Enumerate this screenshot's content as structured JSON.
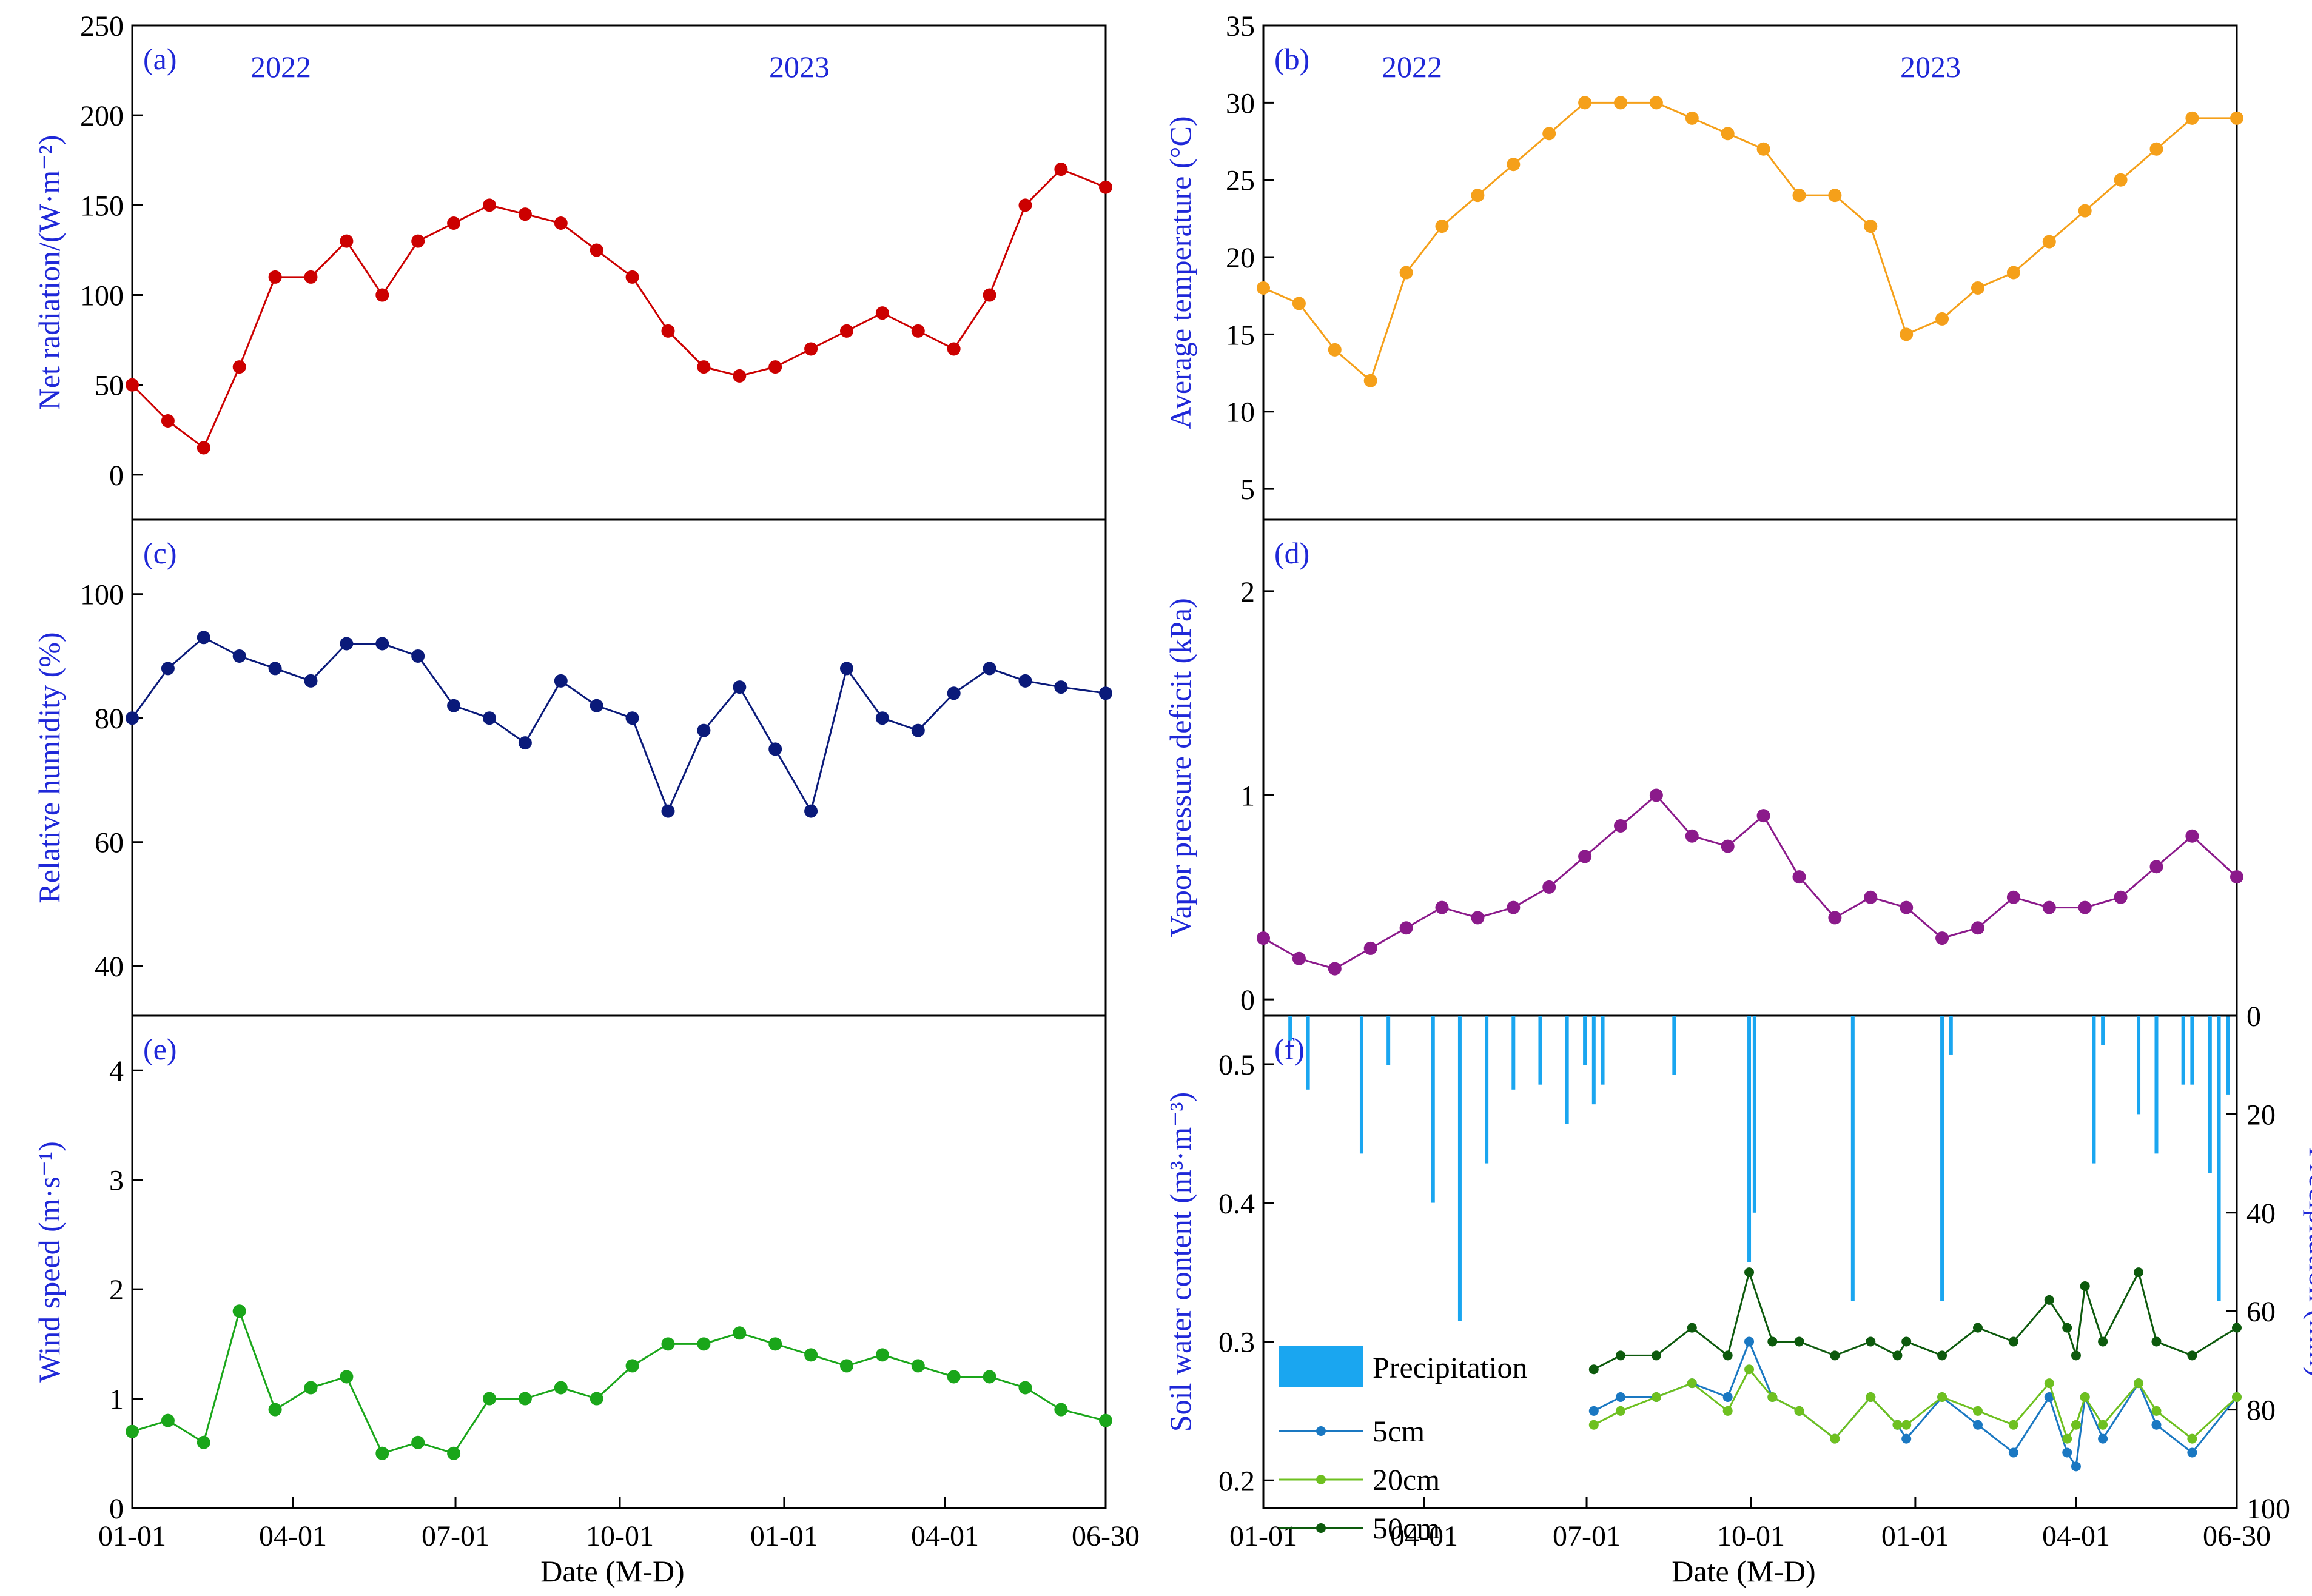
{
  "figure": {
    "shared_xlabel": "Date (M-D)",
    "date_ticks": [
      "01-01",
      "04-01",
      "07-01",
      "10-01",
      "01-01",
      "04-01",
      "06-30"
    ],
    "years": [
      "2022",
      "2023"
    ]
  },
  "chart_data": [
    {
      "id": "a",
      "panel_label": "(a)",
      "type": "line",
      "ylabel": "Net radiation/(W·m⁻²)",
      "ylim": [
        -25,
        250
      ],
      "yticks": [
        0,
        50,
        100,
        150,
        200,
        250
      ],
      "color": "#cc0000",
      "year_labels": [
        "2022",
        "2023"
      ],
      "x_days": [
        0,
        20,
        40,
        60,
        80,
        100,
        120,
        140,
        160,
        180,
        200,
        220,
        240,
        260,
        280,
        300,
        320,
        340,
        360,
        380,
        400,
        420,
        440,
        460,
        480,
        500,
        520,
        545
      ],
      "series": [
        {
          "name": "Net radiation",
          "values": [
            50,
            30,
            15,
            60,
            110,
            110,
            130,
            100,
            130,
            140,
            150,
            145,
            140,
            125,
            110,
            80,
            60,
            55,
            60,
            70,
            80,
            90,
            80,
            70,
            100,
            150,
            170,
            160
          ]
        }
      ]
    },
    {
      "id": "b",
      "panel_label": "(b)",
      "type": "line",
      "ylabel": "Average temperature (°C)",
      "ylim": [
        3,
        35
      ],
      "yticks": [
        5,
        10,
        15,
        20,
        25,
        30,
        35
      ],
      "color": "#f5a01a",
      "year_labels": [
        "2022",
        "2023"
      ],
      "x_days": [
        0,
        20,
        40,
        60,
        80,
        100,
        120,
        140,
        160,
        180,
        200,
        220,
        240,
        260,
        280,
        300,
        320,
        340,
        360,
        380,
        400,
        420,
        440,
        460,
        480,
        500,
        520,
        545
      ],
      "series": [
        {
          "name": "Average temperature",
          "values": [
            18,
            17,
            14,
            12,
            19,
            22,
            24,
            26,
            28,
            30,
            30,
            30,
            29,
            28,
            27,
            24,
            24,
            22,
            15,
            16,
            18,
            19,
            21,
            23,
            25,
            27,
            29,
            29
          ]
        }
      ]
    },
    {
      "id": "c",
      "panel_label": "(c)",
      "type": "line",
      "ylabel": "Relative humidity (%)",
      "ylim": [
        32,
        112
      ],
      "yticks": [
        40,
        60,
        80,
        100
      ],
      "color": "#0a1a7a",
      "x_days": [
        0,
        20,
        40,
        60,
        80,
        100,
        120,
        140,
        160,
        180,
        200,
        220,
        240,
        260,
        280,
        300,
        320,
        340,
        360,
        380,
        400,
        420,
        440,
        460,
        480,
        500,
        520,
        545
      ],
      "series": [
        {
          "name": "Relative humidity",
          "values": [
            80,
            88,
            93,
            90,
            88,
            86,
            92,
            92,
            90,
            82,
            80,
            76,
            86,
            82,
            80,
            65,
            78,
            85,
            75,
            65,
            88,
            80,
            78,
            84,
            88,
            86,
            85,
            84
          ]
        }
      ]
    },
    {
      "id": "d",
      "panel_label": "(d)",
      "type": "line",
      "ylabel": "Vapor pressure deficit (kPa)",
      "ylim": [
        -0.08,
        2.35
      ],
      "yticks": [
        0,
        1,
        2
      ],
      "color": "#8b1a8b",
      "x_days": [
        0,
        20,
        40,
        60,
        80,
        100,
        120,
        140,
        160,
        180,
        200,
        220,
        240,
        260,
        280,
        300,
        320,
        340,
        360,
        380,
        400,
        420,
        440,
        460,
        480,
        500,
        520,
        545
      ],
      "series": [
        {
          "name": "Vapor pressure deficit",
          "values": [
            0.3,
            0.2,
            0.15,
            0.25,
            0.35,
            0.45,
            0.4,
            0.45,
            0.55,
            0.7,
            0.85,
            1.0,
            0.8,
            0.75,
            0.9,
            0.6,
            0.4,
            0.5,
            0.45,
            0.3,
            0.35,
            0.5,
            0.45,
            0.45,
            0.5,
            0.65,
            0.8,
            0.6
          ]
        }
      ]
    },
    {
      "id": "e",
      "panel_label": "(e)",
      "type": "line",
      "ylabel": "Wind speed (m·s⁻¹)",
      "ylim": [
        0,
        4.5
      ],
      "yticks": [
        0,
        1,
        2,
        3,
        4
      ],
      "color": "#1aa61a",
      "x_days": [
        0,
        20,
        40,
        60,
        80,
        100,
        120,
        140,
        160,
        180,
        200,
        220,
        240,
        260,
        280,
        300,
        320,
        340,
        360,
        380,
        400,
        420,
        440,
        460,
        480,
        500,
        520,
        545
      ],
      "series": [
        {
          "name": "Wind speed",
          "values": [
            0.7,
            0.8,
            0.6,
            1.8,
            0.9,
            1.1,
            1.2,
            0.5,
            0.6,
            0.5,
            1.0,
            1.0,
            1.1,
            1.0,
            1.3,
            1.5,
            1.5,
            1.6,
            1.5,
            1.4,
            1.3,
            1.4,
            1.3,
            1.2,
            1.2,
            1.1,
            0.9,
            0.8
          ]
        }
      ]
    },
    {
      "id": "f",
      "panel_label": "(f)",
      "type": "line",
      "ylabel": "Soil water content (m³·m⁻³)",
      "y2label": "Precipitation (mm)",
      "ylim": [
        0.18,
        0.535
      ],
      "yticks": [
        0.2,
        0.3,
        0.4,
        0.5
      ],
      "y2lim": [
        0,
        100
      ],
      "y2ticks": [
        0,
        20,
        40,
        60,
        80,
        100
      ],
      "y2_inverted": true,
      "legend": [
        "Precipitation",
        "5cm",
        "20cm",
        "50cm"
      ],
      "legend_position": "bottom-left",
      "precipitation_color": "#1aa6f0",
      "precipitation": {
        "days": [
          15,
          25,
          55,
          70,
          95,
          110,
          125,
          140,
          155,
          170,
          180,
          185,
          190,
          230,
          272,
          275,
          330,
          380,
          385,
          465,
          470,
          490,
          500,
          515,
          520,
          530,
          535,
          540
        ],
        "values": [
          5,
          15,
          28,
          10,
          38,
          62,
          30,
          15,
          14,
          22,
          10,
          18,
          14,
          12,
          50,
          40,
          58,
          58,
          8,
          30,
          6,
          20,
          28,
          14,
          14,
          32,
          58,
          16
        ]
      },
      "series": [
        {
          "name": "5cm",
          "color": "#1a78c2",
          "x_days": [
            185,
            200,
            220,
            240,
            260,
            272,
            285,
            300,
            320,
            340,
            355,
            360,
            380,
            400,
            420,
            440,
            450,
            455,
            460,
            470,
            490,
            500,
            520,
            545
          ],
          "values": [
            0.25,
            0.26,
            0.26,
            0.27,
            0.26,
            0.3,
            0.26,
            0.25,
            0.23,
            0.26,
            0.24,
            0.23,
            0.26,
            0.24,
            0.22,
            0.26,
            0.22,
            0.21,
            0.26,
            0.23,
            0.27,
            0.24,
            0.22,
            0.26
          ]
        },
        {
          "name": "20cm",
          "color": "#6ec020",
          "x_days": [
            185,
            200,
            220,
            240,
            260,
            272,
            285,
            300,
            320,
            340,
            355,
            360,
            380,
            400,
            420,
            440,
            450,
            455,
            460,
            470,
            490,
            500,
            520,
            545
          ],
          "values": [
            0.24,
            0.25,
            0.26,
            0.27,
            0.25,
            0.28,
            0.26,
            0.25,
            0.23,
            0.26,
            0.24,
            0.24,
            0.26,
            0.25,
            0.24,
            0.27,
            0.23,
            0.24,
            0.26,
            0.24,
            0.27,
            0.25,
            0.23,
            0.26
          ]
        },
        {
          "name": "50cm",
          "color": "#0d5a0d",
          "x_days": [
            185,
            200,
            220,
            240,
            260,
            272,
            285,
            300,
            320,
            340,
            355,
            360,
            380,
            400,
            420,
            440,
            450,
            455,
            460,
            470,
            490,
            500,
            520,
            545
          ],
          "values": [
            0.28,
            0.29,
            0.29,
            0.31,
            0.29,
            0.35,
            0.3,
            0.3,
            0.29,
            0.3,
            0.29,
            0.3,
            0.29,
            0.31,
            0.3,
            0.33,
            0.31,
            0.29,
            0.34,
            0.3,
            0.35,
            0.3,
            0.29,
            0.31
          ]
        }
      ]
    }
  ]
}
